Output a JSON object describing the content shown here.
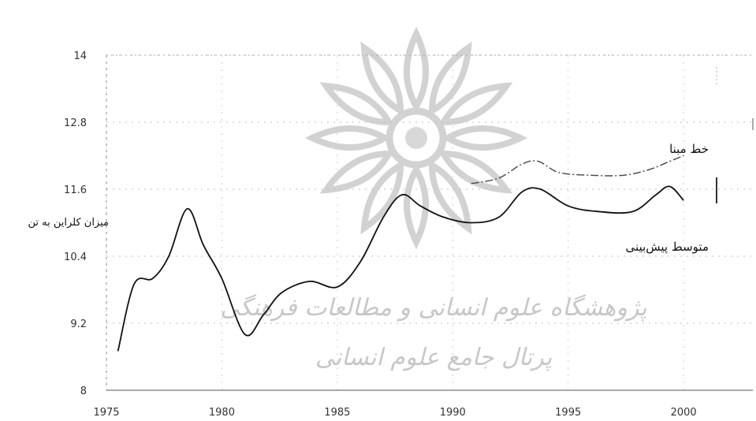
{
  "chart_data": {
    "type": "line",
    "ylabel": "میزان کلراین به تن",
    "ylim": [
      8,
      14
    ],
    "xlim": [
      1975,
      2003
    ],
    "x_ticks": [
      "1975",
      "1980",
      "1985",
      "1990",
      "1995",
      "2000"
    ],
    "x_tick_values": [
      1975,
      1980,
      1985,
      1990,
      1995,
      2000
    ],
    "y_ticks": [
      "14",
      "12.8",
      "11.6",
      "10.4",
      "9.2",
      "8"
    ],
    "y_tick_values": [
      14,
      12.8,
      11.6,
      10.4,
      9.2,
      8
    ],
    "grid": true,
    "series": [
      {
        "name": "متوسط پیش‌بینی",
        "color": "#111111",
        "style": "solid",
        "points": [
          [
            1975.5,
            8.7
          ],
          [
            1976.2,
            9.9
          ],
          [
            1977.0,
            10.0
          ],
          [
            1977.7,
            10.4
          ],
          [
            1978.5,
            11.25
          ],
          [
            1979.2,
            10.6
          ],
          [
            1980.0,
            10.0
          ],
          [
            1981.0,
            9.0
          ],
          [
            1981.8,
            9.35
          ],
          [
            1982.6,
            9.75
          ],
          [
            1983.8,
            9.95
          ],
          [
            1985.0,
            9.85
          ],
          [
            1986.0,
            10.3
          ],
          [
            1987.0,
            11.1
          ],
          [
            1987.8,
            11.5
          ],
          [
            1988.6,
            11.3
          ],
          [
            1989.6,
            11.1
          ],
          [
            1990.8,
            11.0
          ],
          [
            1992.0,
            11.1
          ],
          [
            1993.0,
            11.55
          ],
          [
            1993.8,
            11.6
          ],
          [
            1995.0,
            11.3
          ],
          [
            1996.3,
            11.2
          ],
          [
            1997.8,
            11.2
          ],
          [
            1998.8,
            11.5
          ],
          [
            1999.4,
            11.65
          ],
          [
            2000.0,
            11.4
          ]
        ]
      },
      {
        "name": "خط مبنا",
        "color": "#444444",
        "style": "dashed",
        "points": [
          [
            1990.8,
            11.7
          ],
          [
            1992.0,
            11.8
          ],
          [
            1993.0,
            12.05
          ],
          [
            1993.7,
            12.1
          ],
          [
            1994.6,
            11.9
          ],
          [
            1996.0,
            11.85
          ],
          [
            1997.4,
            11.85
          ],
          [
            1998.5,
            11.95
          ],
          [
            1999.4,
            12.1
          ],
          [
            2000.0,
            12.2
          ]
        ]
      }
    ],
    "watermark": [
      "پژوهشگاه علوم انسانی و مطالعات فرهنگی",
      "پرتال جامع علوم انسانی"
    ]
  }
}
